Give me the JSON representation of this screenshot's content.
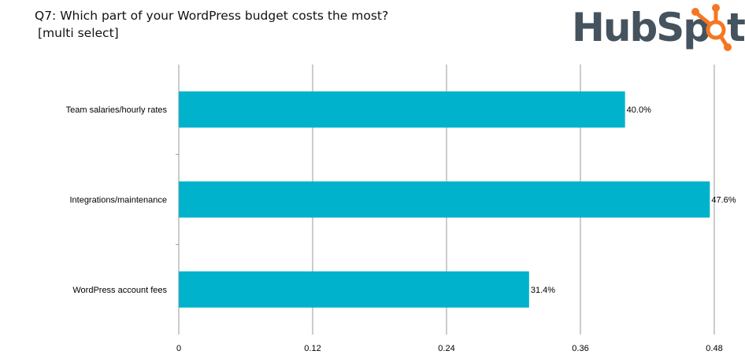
{
  "title_line1": "Q7: Which part of your WordPress budget costs the most?",
  "title_line2": "[multi select]",
  "logo": {
    "text": "HubSpot",
    "text_color": "#45535e",
    "accent_color": "#f57722"
  },
  "chart_data": {
    "type": "bar",
    "orientation": "horizontal",
    "categories": [
      "Team salaries/hourly rates",
      "Integrations/maintenance",
      "WordPress account fees"
    ],
    "values": [
      0.4,
      0.476,
      0.314
    ],
    "data_labels": [
      "40.0%",
      "47.6%",
      "31.4%"
    ],
    "xlim": [
      0,
      0.48
    ],
    "xticks": [
      "0",
      "0.12",
      "0.24",
      "0.36",
      "0.48"
    ],
    "xtick_values": [
      0,
      0.12,
      0.24,
      0.36,
      0.48
    ],
    "grid": "vertical",
    "bar_color": "#00b2cc",
    "xlabel": "",
    "ylabel": ""
  }
}
